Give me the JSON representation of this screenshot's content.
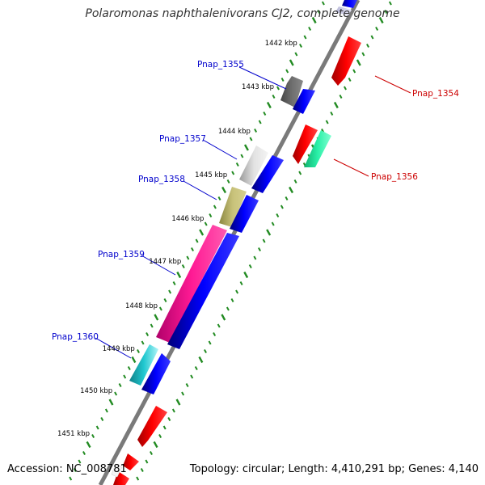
{
  "title": "Polaromonas naphthalenivorans CJ2, complete genome",
  "accession_text": "Accession: NC_008781",
  "topology_text": "Topology: circular; Length: 4,410,291 bp; Genes: 4,140",
  "colors": {
    "backbone": "#808080",
    "forward_cds": "#ff0000",
    "reverse_cds": "#0000ff",
    "tick": "#228b22",
    "label_reverse": "#0000cc",
    "label_forward": "#cc0000"
  },
  "kbp_ticks": [
    "1442 kbp",
    "1443 kbp",
    "1444 kbp",
    "1445 kbp",
    "1446 kbp",
    "1447 kbp",
    "1448 kbp",
    "1449 kbp",
    "1450 kbp",
    "1451 kbp"
  ],
  "gene_labels": {
    "pnap_1354": "Pnap_1354",
    "pnap_1355": "Pnap_1355",
    "pnap_1356": "Pnap_1356",
    "pnap_1357": "Pnap_1357",
    "pnap_1358": "Pnap_1358",
    "pnap_1359": "Pnap_1359",
    "pnap_1360": "Pnap_1360"
  }
}
